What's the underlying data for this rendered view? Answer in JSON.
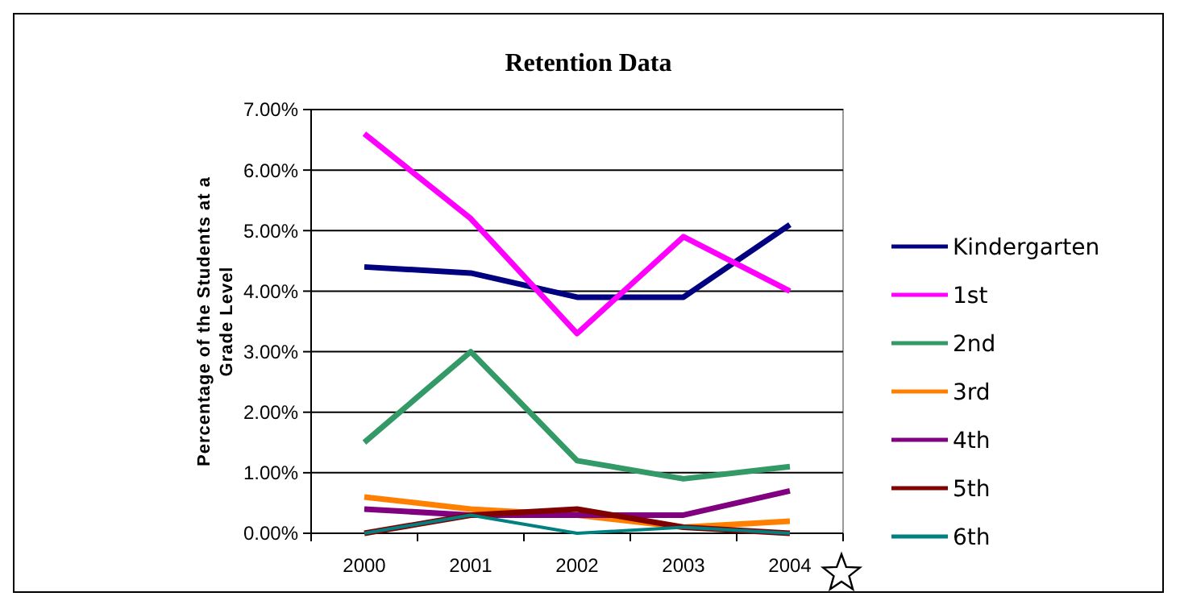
{
  "chart_data": {
    "type": "line",
    "title": "Retention Data",
    "ylabel": "Percentage of the Students at a Grade Level",
    "categories": [
      "2000",
      "2001",
      "2002",
      "2003",
      "2004"
    ],
    "series": [
      {
        "name": "Kindergarten",
        "color": "#000080",
        "values": [
          0.044,
          0.043,
          0.039,
          0.039,
          0.051
        ]
      },
      {
        "name": "1st",
        "color": "#ff00ff",
        "values": [
          0.066,
          0.052,
          0.033,
          0.049,
          0.04
        ]
      },
      {
        "name": "2nd",
        "color": "#339966",
        "values": [
          0.015,
          0.03,
          0.012,
          0.009,
          0.011
        ]
      },
      {
        "name": "3rd",
        "color": "#ff8000",
        "values": [
          0.006,
          0.004,
          0.003,
          0.001,
          0.002
        ]
      },
      {
        "name": "4th",
        "color": "#800080",
        "values": [
          0.004,
          0.003,
          0.003,
          0.003,
          0.007
        ]
      },
      {
        "name": "5th",
        "color": "#800000",
        "values": [
          0.0,
          0.003,
          0.004,
          0.001,
          0.0
        ]
      },
      {
        "name": "6th",
        "color": "#008080",
        "values": [
          0.0,
          0.003,
          0.0,
          0.001,
          0.0
        ]
      }
    ],
    "ylim": [
      0,
      0.07
    ],
    "yticks": [
      {
        "value": 0,
        "label": "0.00%"
      },
      {
        "value": 0.01,
        "label": "1.00%"
      },
      {
        "value": 0.02,
        "label": "2.00%"
      },
      {
        "value": 0.03,
        "label": "3.00%"
      },
      {
        "value": 0.04,
        "label": "4.00%"
      },
      {
        "value": 0.05,
        "label": "5.00%"
      },
      {
        "value": 0.06,
        "label": "6.00%"
      },
      {
        "value": 0.07,
        "label": "7.00%"
      }
    ],
    "grid": "y",
    "legend": "right",
    "marker": "none",
    "line_style": "solid"
  }
}
